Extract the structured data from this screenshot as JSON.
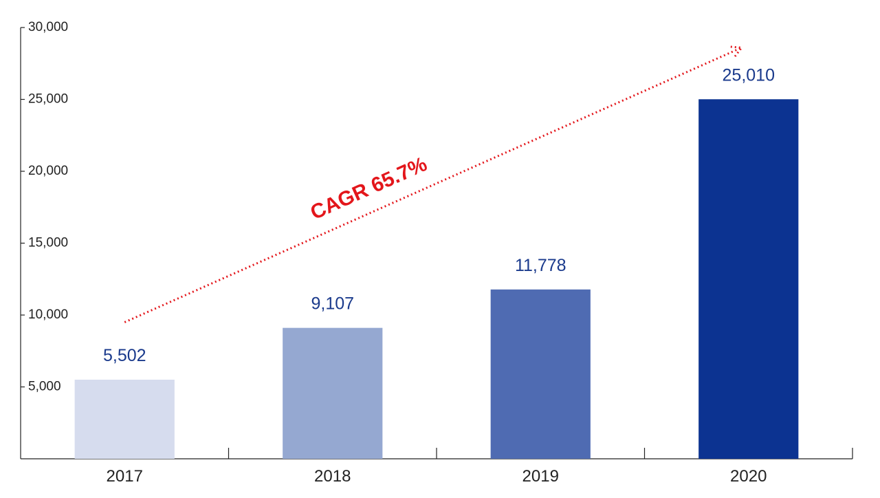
{
  "chart_data": {
    "type": "bar",
    "categories": [
      "2017",
      "2018",
      "2019",
      "2020"
    ],
    "values": [
      5502,
      9107,
      11778,
      25010
    ],
    "value_labels": [
      "5,502",
      "9,107",
      "11,778",
      "25,010"
    ],
    "yticks": [
      5000,
      10000,
      15000,
      20000,
      25000,
      30000
    ],
    "ytick_labels": [
      "5,000",
      "10,000",
      "15,000",
      "20,000",
      "25,000",
      "30,000"
    ],
    "ylim": [
      0,
      30000
    ],
    "grid": false,
    "legend": "none",
    "bar_colors": [
      "#d6dcee",
      "#95a8d1",
      "#4f6bb2",
      "#0c3391"
    ],
    "label_color": "#1a3a8c",
    "annotation": {
      "text": "CAGR 65.7%",
      "color": "#e3161b",
      "style": "dotted-arrow",
      "from_category": "2017",
      "to_category": "2020"
    },
    "title": "",
    "xlabel": "",
    "ylabel": ""
  }
}
